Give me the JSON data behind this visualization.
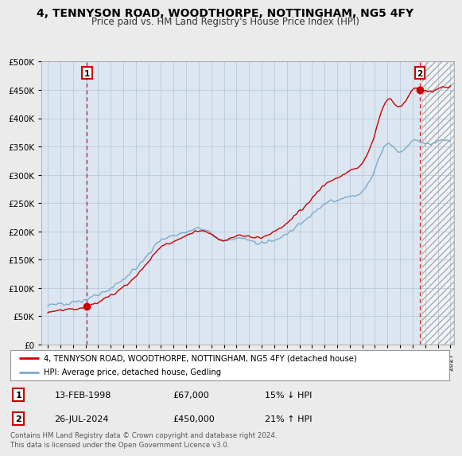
{
  "title": "4, TENNYSON ROAD, WOODTHORPE, NOTTINGHAM, NG5 4FY",
  "subtitle": "Price paid vs. HM Land Registry's House Price Index (HPI)",
  "ylim": [
    0,
    500000
  ],
  "yticks": [
    0,
    50000,
    100000,
    150000,
    200000,
    250000,
    300000,
    350000,
    400000,
    450000,
    500000
  ],
  "ytick_labels": [
    "£0",
    "£50K",
    "£100K",
    "£150K",
    "£200K",
    "£250K",
    "£300K",
    "£350K",
    "£400K",
    "£450K",
    "£500K"
  ],
  "hpi_color": "#7aabcf",
  "sale_color": "#cc0000",
  "sale_points": [
    {
      "date_num": 1998.12,
      "price": 67000,
      "label": "1",
      "pct": "15% ↓ HPI",
      "date_str": "13-FEB-1998"
    },
    {
      "date_num": 2024.58,
      "price": 450000,
      "label": "2",
      "pct": "21% ↑ HPI",
      "date_str": "26-JUL-2024"
    }
  ],
  "legend_entry1": "4, TENNYSON ROAD, WOODTHORPE, NOTTINGHAM, NG5 4FY (detached house)",
  "legend_entry2": "HPI: Average price, detached house, Gedling",
  "footer": "Contains HM Land Registry data © Crown copyright and database right 2024.\nThis data is licensed under the Open Government Licence v3.0.",
  "background_color": "#ebebeb",
  "plot_bg": "#dce6f0",
  "grid_color": "#b0c4d8",
  "hatch_start": 2024.75,
  "xmin": 1994.5,
  "xmax": 2027.3
}
